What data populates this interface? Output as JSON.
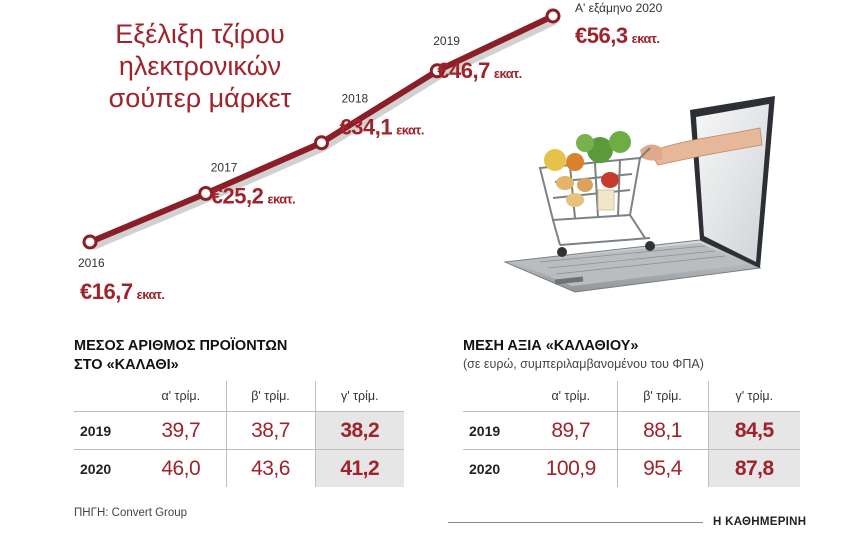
{
  "chart_data": {
    "type": "line",
    "title": [
      "Εξέλιξη τζίρου",
      "ηλεκτρονικών",
      "σούπερ μάρκετ"
    ],
    "unit_label": "εκατ.",
    "points": [
      {
        "x": "2016",
        "y": 16.7,
        "value_label": "€16,7"
      },
      {
        "x": "2017",
        "y": 25.2,
        "value_label": "€25,2"
      },
      {
        "x": "2018",
        "y": 34.1,
        "value_label": "€34,1"
      },
      {
        "x": "2019",
        "y": 46.7,
        "value_label": "€46,7"
      },
      {
        "x": "Α' εξάμηνο 2020",
        "y": 56.3,
        "value_label": "€56,3"
      }
    ],
    "line_color": "#8b1e27"
  },
  "table_products": {
    "title_lines": [
      "ΜΕΣΟΣ ΑΡΙΘΜΟΣ ΠΡΟΪΟΝΤΩΝ",
      "ΣΤΟ «ΚΑΛΑΘΙ»"
    ],
    "columns": [
      "α' τρίμ.",
      "β' τρίμ.",
      "γ' τρίμ."
    ],
    "rows": [
      {
        "year": "2019",
        "values": [
          "39,7",
          "38,7",
          "38,2"
        ]
      },
      {
        "year": "2020",
        "values": [
          "46,0",
          "43,6",
          "41,2"
        ]
      }
    ]
  },
  "table_value": {
    "title": "ΜΕΣΗ ΑΞΙΑ «ΚΑΛΑΘΙΟΥ»",
    "subtitle": "(σε ευρώ, συμπεριλαμβανομένου του ΦΠΑ)",
    "columns": [
      "α' τρίμ.",
      "β' τρίμ.",
      "γ' τρίμ."
    ],
    "rows": [
      {
        "year": "2019",
        "values": [
          "89,7",
          "88,1",
          "84,5"
        ]
      },
      {
        "year": "2020",
        "values": [
          "100,9",
          "95,4",
          "87,8"
        ]
      }
    ]
  },
  "source": "ΠΗΓΗ: Convert Group",
  "publisher": "Η ΚΑΘΗΜΕΡΙΝΗ",
  "colors": {
    "accent": "#a0232b",
    "highlight_cell": "#e6e6e6"
  }
}
